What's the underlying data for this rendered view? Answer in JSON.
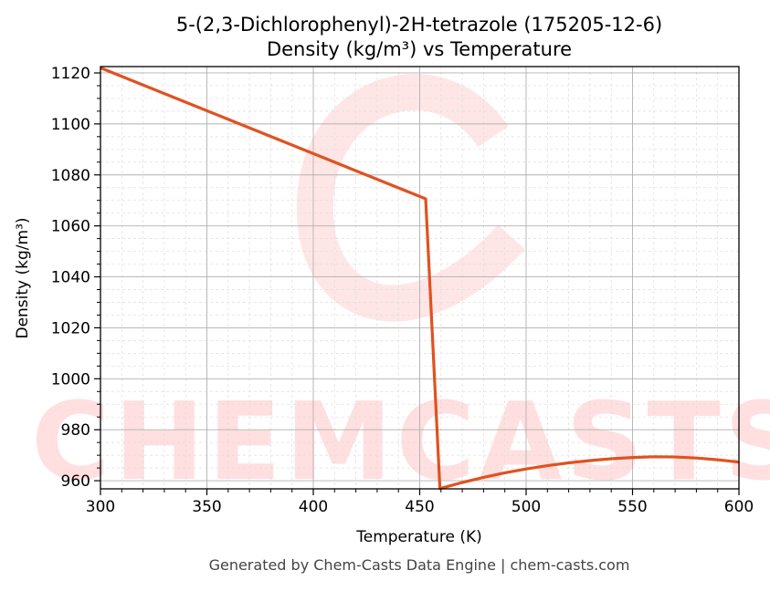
{
  "chart_data": {
    "type": "line",
    "title": "5-(2,3-Dichlorophenyl)-2H-tetrazole (175205-12-6)",
    "subtitle": "Density (kg/m³) vs Temperature",
    "xlabel": "Temperature (K)",
    "ylabel": "Density (kg/m³)",
    "xlim": [
      300,
      600
    ],
    "ylim": [
      956.8,
      1122.5
    ],
    "xticks": [
      300,
      350,
      400,
      450,
      500,
      550,
      600
    ],
    "yticks": [
      960,
      980,
      1000,
      1020,
      1040,
      1060,
      1080,
      1100,
      1120
    ],
    "grid": true,
    "series": [
      {
        "name": "Density",
        "color": "#e0521f",
        "x": [
          300,
          452.8,
          459.5,
          470,
          480,
          490,
          500,
          510,
          520,
          530,
          540,
          550,
          560,
          570,
          580,
          590,
          600
        ],
        "y": [
          1122,
          1070.6,
          956.9,
          959.3,
          961.3,
          963.1,
          964.6,
          965.9,
          967.0,
          967.9,
          968.6,
          969.1,
          969.4,
          969.3,
          968.9,
          968.2,
          967.3
        ]
      }
    ],
    "watermark": "CHEMCASTS",
    "footer": "Generated by Chem-Casts Data Engine | chem-casts.com"
  }
}
